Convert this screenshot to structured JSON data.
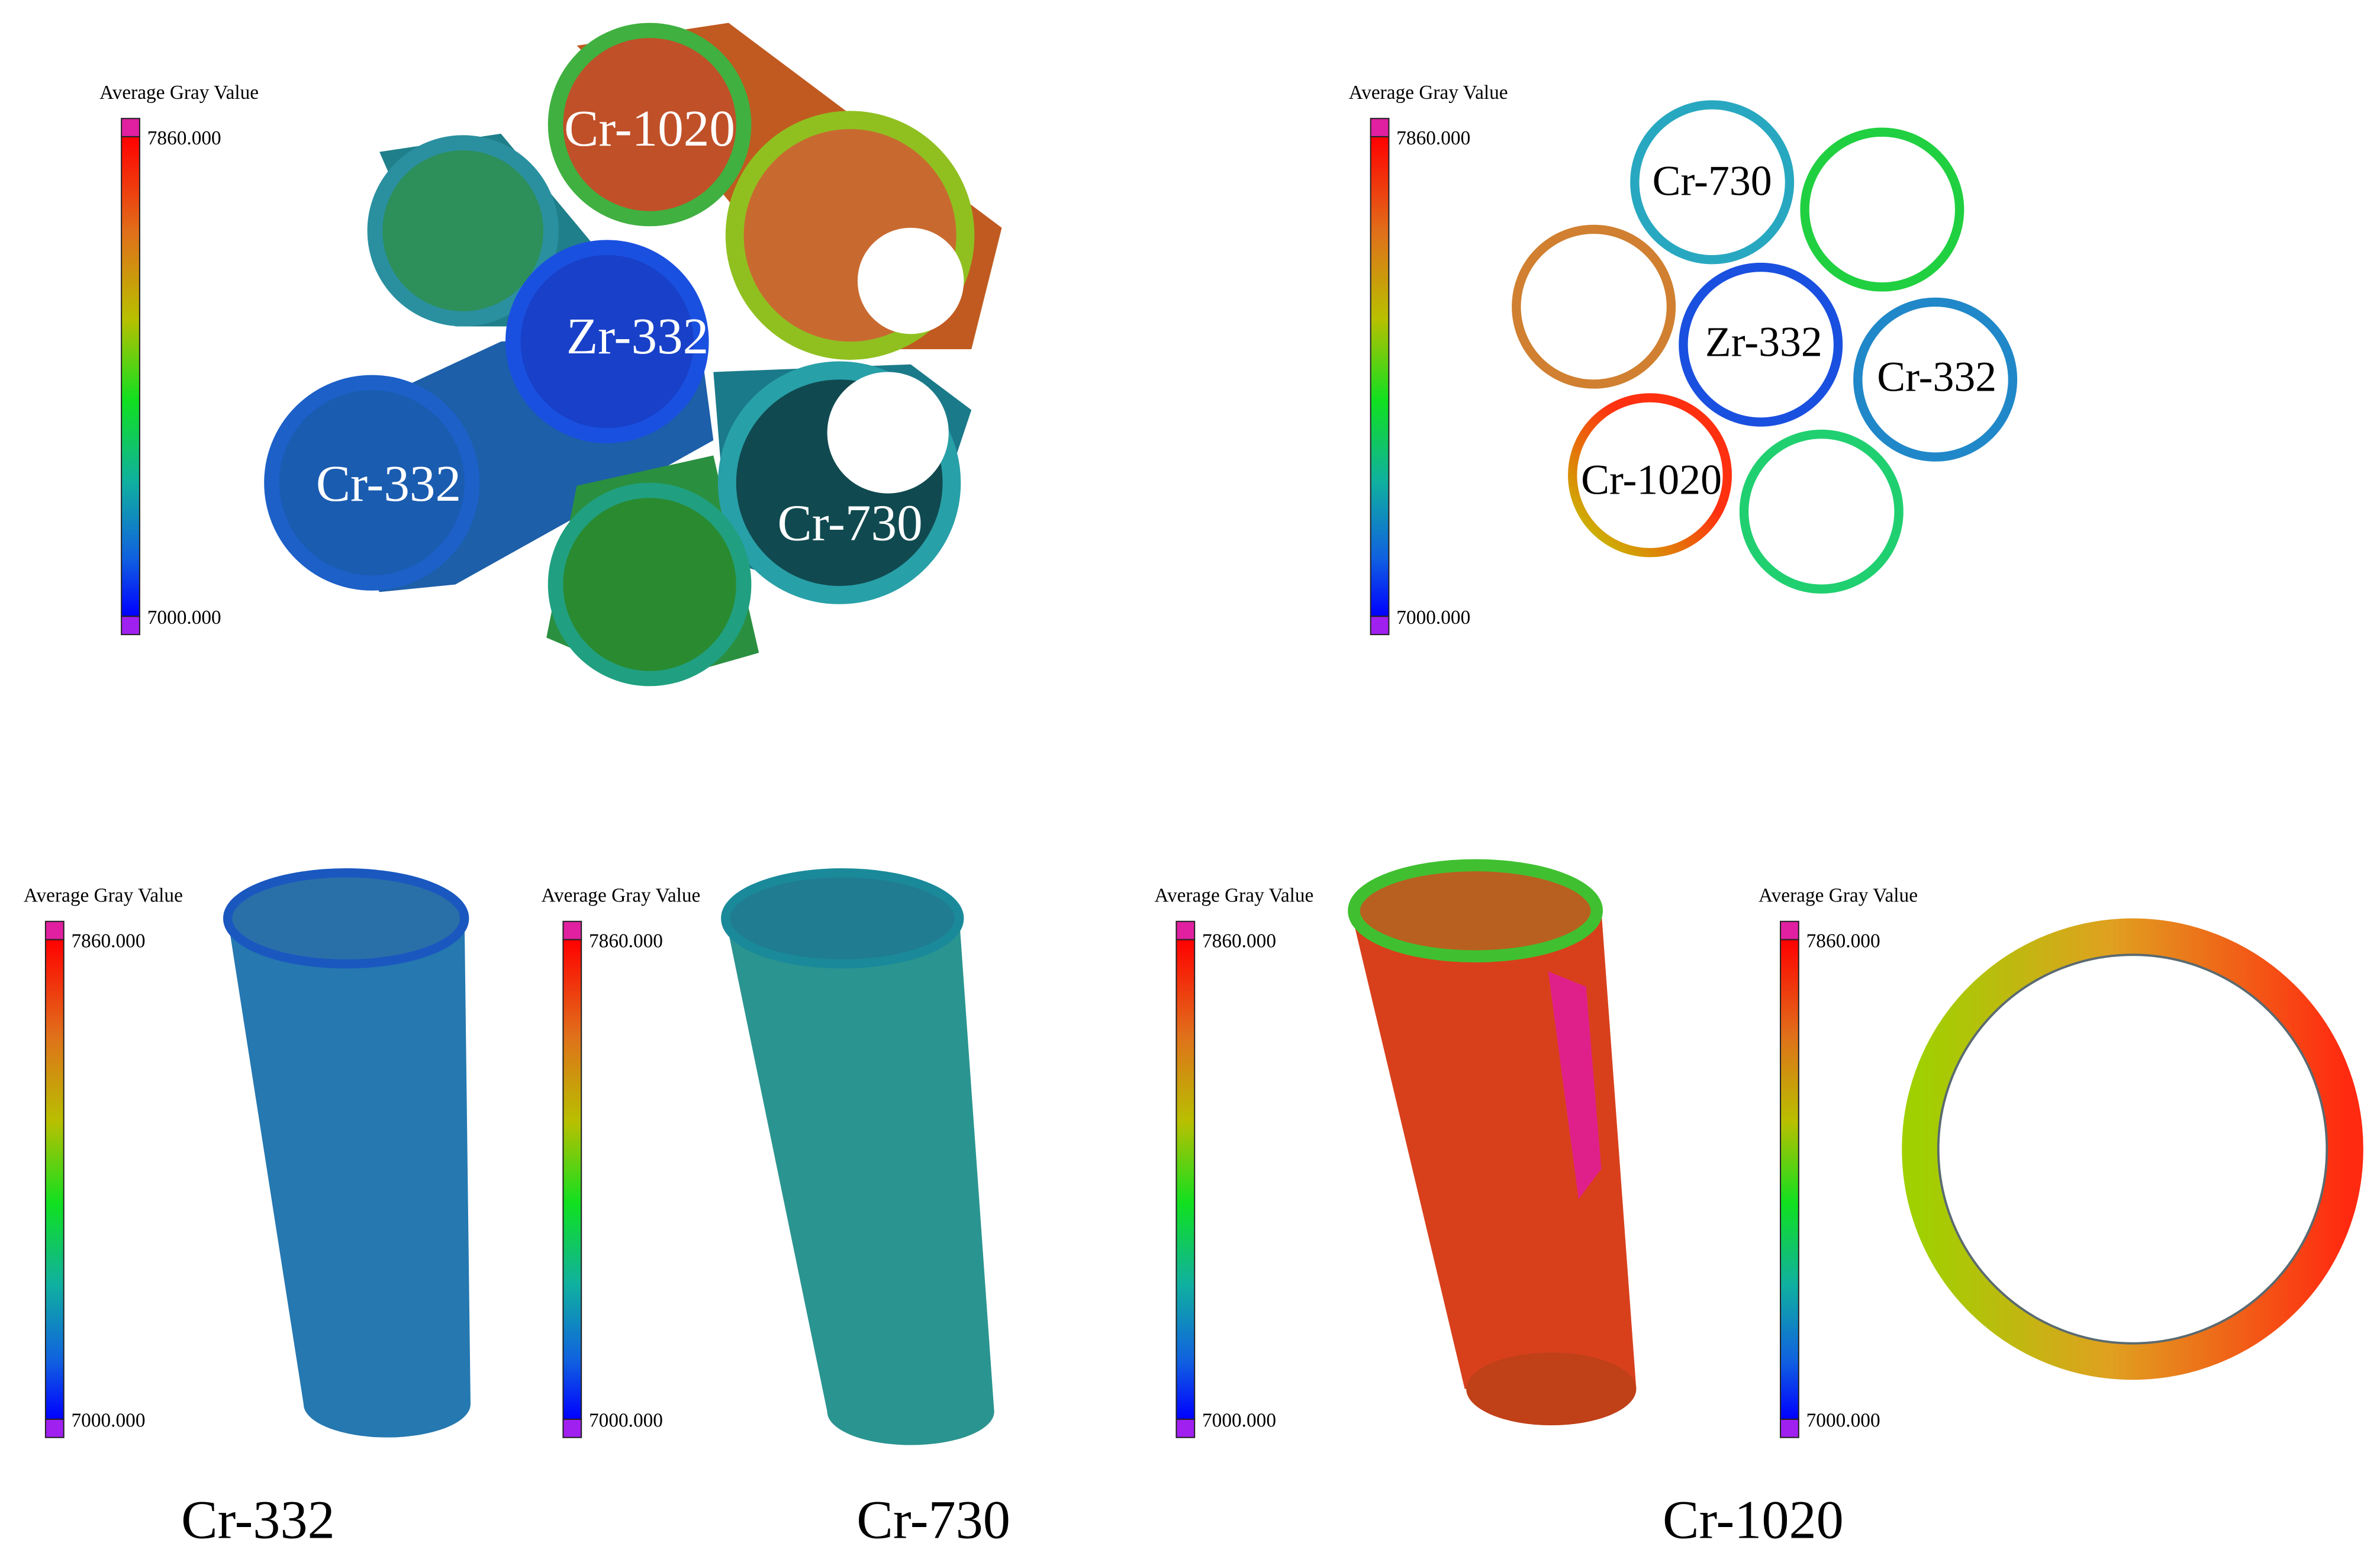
{
  "panels": [
    {
      "colorbar": {
        "title": "Average Gray Value",
        "max": "7860.000",
        "min": "7000.000"
      },
      "labels": [
        "Cr-1020",
        "Zr-332",
        "Cr-332",
        "Cr-730"
      ]
    },
    {
      "colorbar": {
        "title": "Average Gray Value",
        "max": "7860.000",
        "min": "7000.000"
      },
      "labels": [
        "Cr-730",
        "Zr-332",
        "Cr-332",
        "Cr-1020"
      ]
    },
    {
      "colorbar": {
        "title": "Average Gray Value",
        "max": "7860.000",
        "min": "7000.000"
      }
    },
    {
      "colorbar": {
        "title": "Average Gray Value",
        "max": "7860.000",
        "min": "7000.000"
      }
    },
    {
      "colorbar": {
        "title": "Average Gray Value",
        "max": "7860.000",
        "min": "7000.000"
      }
    },
    {
      "colorbar": {
        "title": "Average Gray Value",
        "max": "7860.000",
        "min": "7000.000"
      }
    }
  ],
  "captions": [
    "Cr-332",
    "Cr-730",
    "Cr-1020"
  ]
}
